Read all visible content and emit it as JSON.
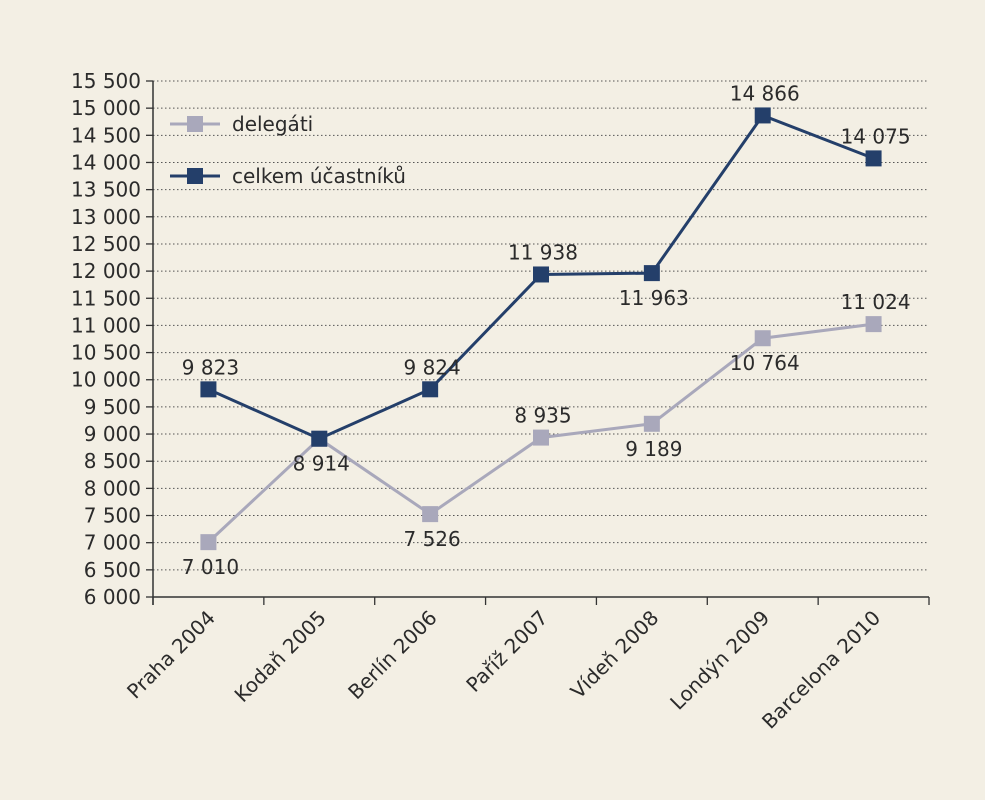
{
  "chart_data": {
    "type": "line",
    "title": "",
    "xlabel": "",
    "ylabel": "",
    "categories": [
      "Praha 2004",
      "Kodaň 2005",
      "Berlín 2006",
      "Paříž 2007",
      "Vídeň 2008",
      "Londýn 2009",
      "Barcelona 2010"
    ],
    "ylim": [
      6000,
      15500
    ],
    "ytick_step": 500,
    "yticks": [
      "6 000",
      "6 500",
      "7 000",
      "7 500",
      "8 000",
      "8 500",
      "9 000",
      "9 500",
      "10 000",
      "10 500",
      "11 000",
      "11 500",
      "12 000",
      "12 500",
      "13 000",
      "13 500",
      "14 000",
      "14 500",
      "15 000",
      "15 500"
    ],
    "grid": true,
    "legend_position": "top-left",
    "series": [
      {
        "name": "delegáti",
        "color": "#a9a8bb",
        "values": [
          7010,
          8914,
          7526,
          8935,
          9189,
          10764,
          11024
        ],
        "labels": [
          "7 010",
          "8 914",
          "7 526",
          "8 935",
          "9 189",
          "10 764",
          "11 024"
        ],
        "label_side": [
          "below",
          "below",
          "below",
          "above",
          "below",
          "below",
          "above"
        ]
      },
      {
        "name": "celkem účastníků",
        "color": "#243f6a",
        "values": [
          9823,
          8914,
          9824,
          11938,
          11963,
          14866,
          14075
        ],
        "labels": [
          "9 823",
          "",
          "9 824",
          "11 938",
          "11 963",
          "14 866",
          "14 075"
        ],
        "label_side": [
          "above",
          "below",
          "above",
          "above",
          "below",
          "above",
          "above"
        ]
      }
    ]
  }
}
